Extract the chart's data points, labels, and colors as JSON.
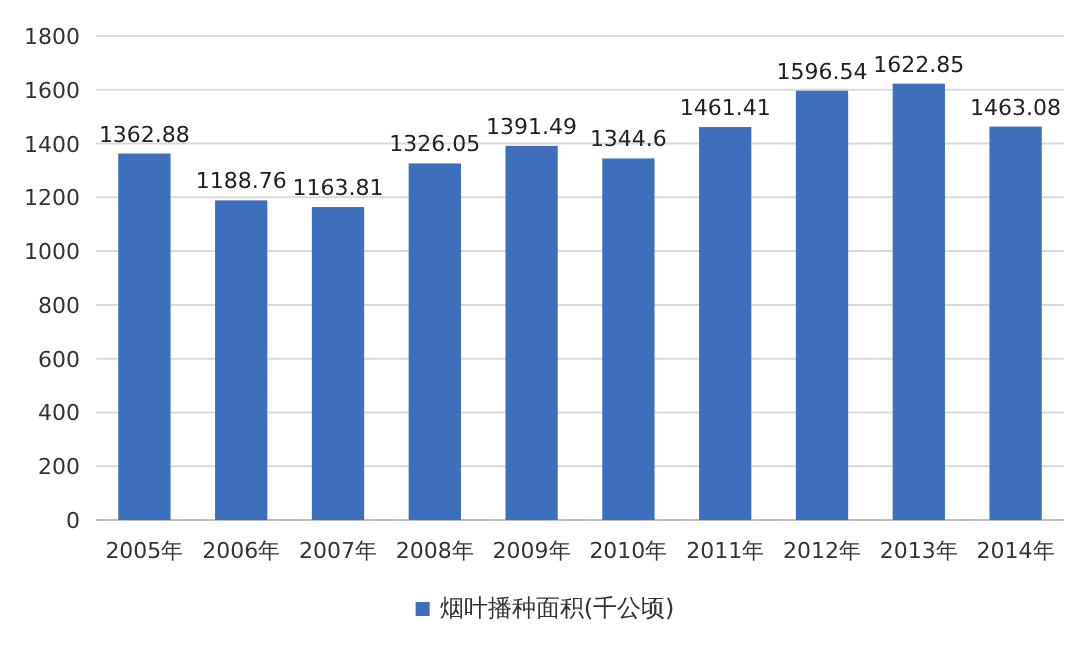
{
  "chart_data": {
    "type": "bar",
    "categories": [
      "2005年",
      "2006年",
      "2007年",
      "2008年",
      "2009年",
      "2010年",
      "2011年",
      "2012年",
      "2013年",
      "2014年"
    ],
    "series": [
      {
        "name": "烟叶播种面积(千公顷)",
        "color": "#3d6fbd",
        "values": [
          1362.88,
          1188.76,
          1163.81,
          1326.05,
          1391.49,
          1344.6,
          1461.41,
          1596.54,
          1622.85,
          1463.08
        ]
      }
    ],
    "ylim": [
      0,
      1800
    ],
    "yticks": [
      0,
      200,
      400,
      600,
      800,
      1000,
      1200,
      1400,
      1600,
      1800
    ],
    "grid": "y",
    "legend": "bottom",
    "data_labels": true
  }
}
